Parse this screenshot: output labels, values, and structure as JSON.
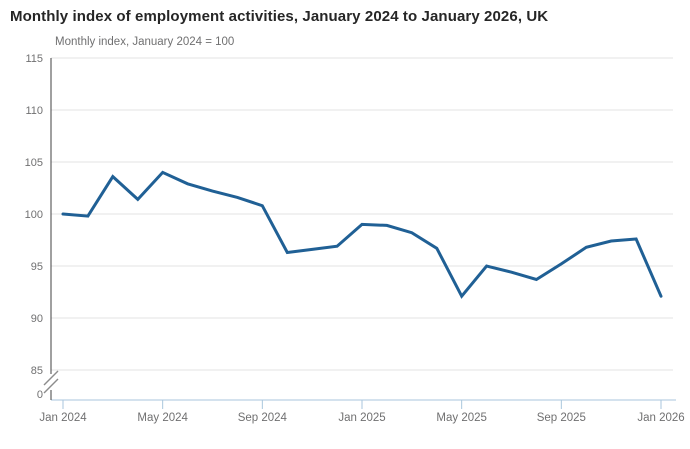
{
  "chart_data": {
    "type": "line",
    "title": "Monthly index of employment activities, January 2024 to January 2026, UK",
    "subtitle": "Monthly index, January 2024 = 100",
    "x": [
      "Jan 2024",
      "Feb 2024",
      "Mar 2024",
      "Apr 2024",
      "May 2024",
      "Jun 2024",
      "Jul 2024",
      "Aug 2024",
      "Sep 2024",
      "Oct 2024",
      "Nov 2024",
      "Dec 2024",
      "Jan 2025",
      "Feb 2025",
      "Mar 2025",
      "Apr 2025",
      "May 2025",
      "Jun 2025",
      "Jul 2025",
      "Aug 2025",
      "Sep 2025",
      "Oct 2025",
      "Nov 2025",
      "Dec 2025",
      "Jan 2026"
    ],
    "series": [
      {
        "name": "Monthly index of employment activities",
        "values": [
          100,
          99.8,
          103.6,
          101.4,
          104,
          102.9,
          102.2,
          101.6,
          100.8,
          96.3,
          96.6,
          96.9,
          99,
          98.9,
          98.2,
          96.7,
          92.1,
          95,
          94.4,
          93.7,
          95.2,
          96.8,
          97.4,
          97.6,
          92.1
        ]
      }
    ],
    "x_tick_labels": [
      "Jan 2024",
      "May 2024",
      "Sep 2024",
      "Jan 2025",
      "May 2025",
      "Sep 2025",
      "Jan 2026"
    ],
    "y_ticks": [
      0,
      85,
      90,
      95,
      100,
      105,
      110,
      115
    ],
    "ylim": [
      85,
      115
    ],
    "axis_break": true,
    "grid": "horizontal",
    "legend": "none",
    "colors": {
      "line": "#206095",
      "gridline": "#e3e3e3",
      "axis_dark": "#414042",
      "axis_light": "#a9c6dd",
      "tick_text": "#707071",
      "break_mark": "#8c8c8c"
    }
  }
}
